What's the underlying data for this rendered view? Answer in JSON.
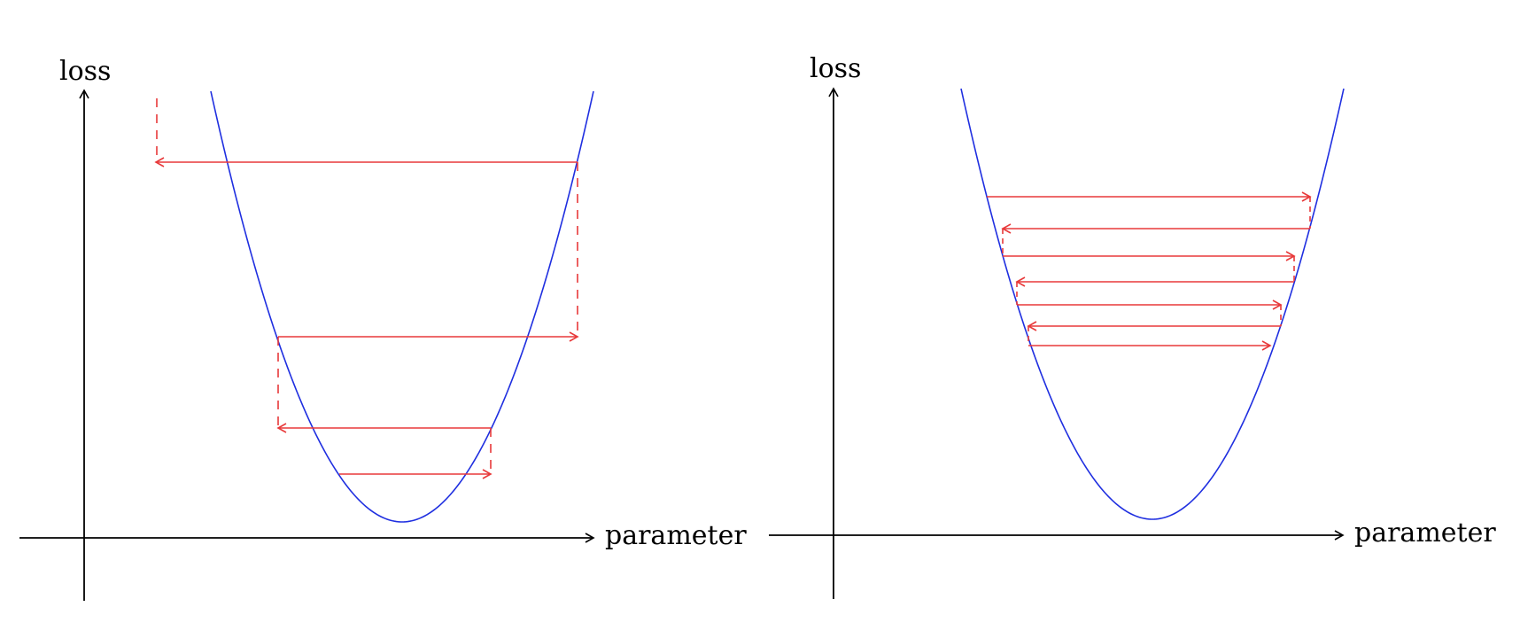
{
  "colors": {
    "axis": "#000000",
    "curve": "#1f2fe0",
    "step": "#e8393a"
  },
  "panels": [
    {
      "id": "left",
      "x_axis_label": "parameter",
      "y_axis_label": "loss",
      "curve": "parabola",
      "description_steps": "diverging"
    },
    {
      "id": "right",
      "x_axis_label": "parameter",
      "y_axis_label": "loss",
      "curve": "parabola",
      "description_steps": "converging"
    }
  ]
}
